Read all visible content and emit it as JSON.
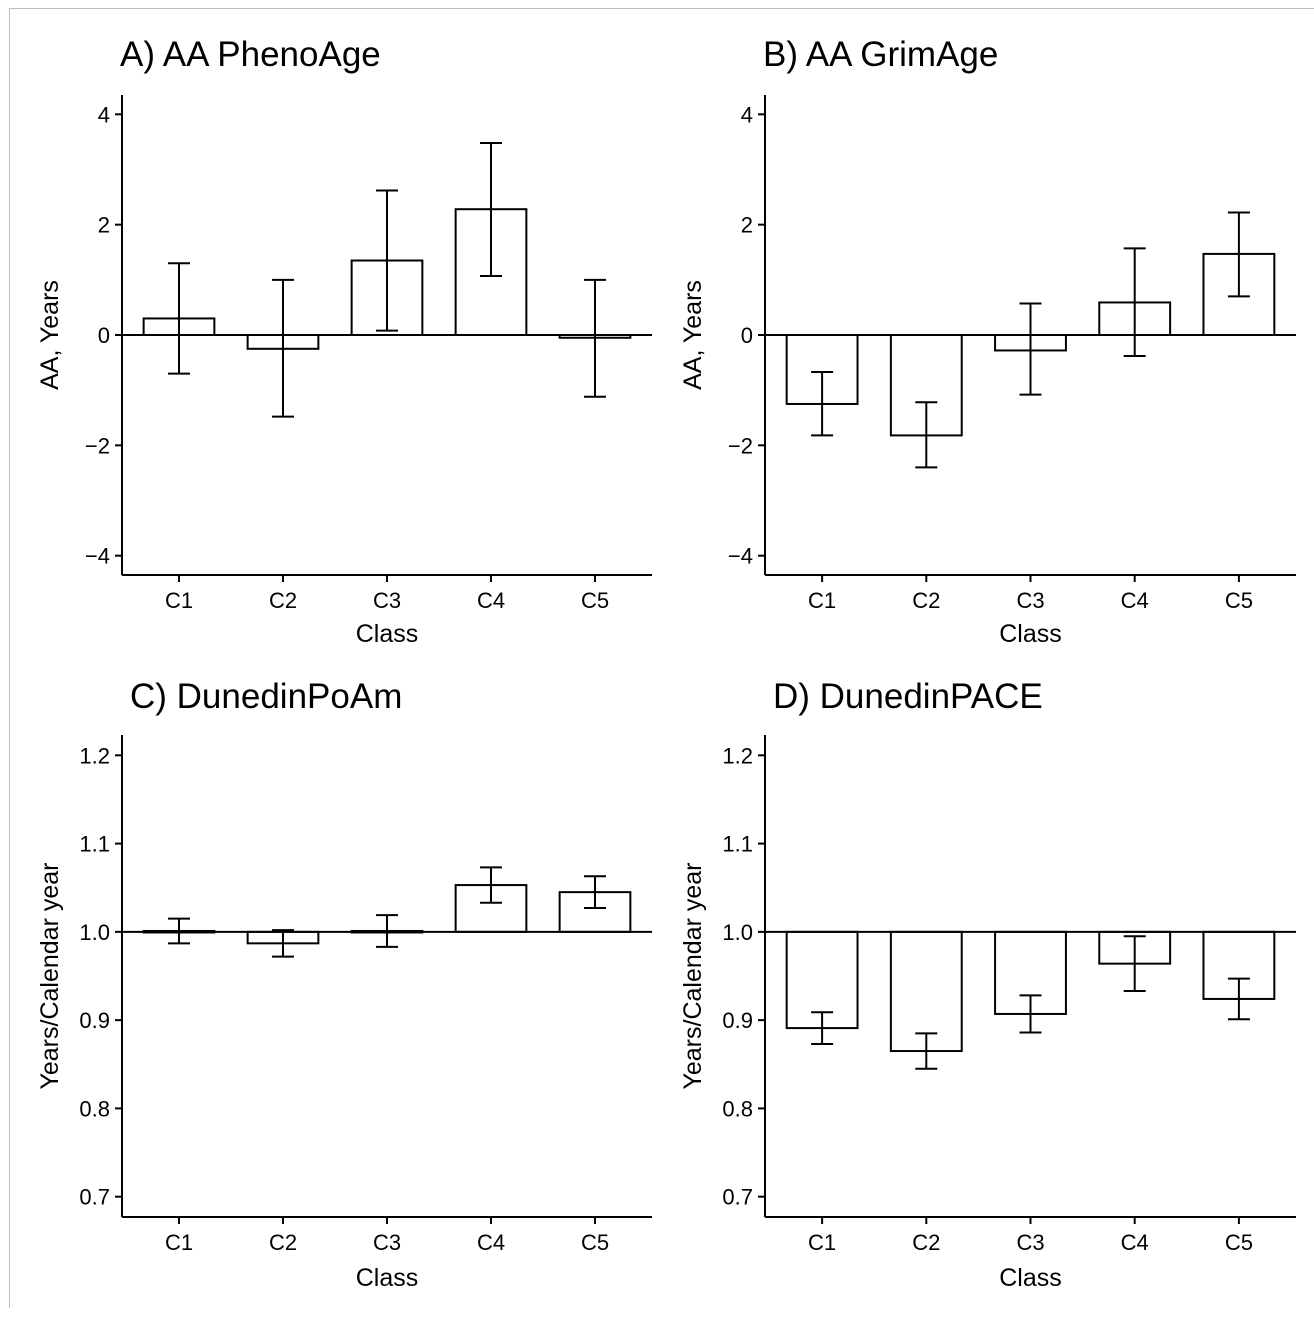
{
  "chart_data": [
    {
      "type": "bar",
      "title": "A) AA PhenoAge",
      "xlabel": "Class",
      "ylabel": "AA, Years",
      "categories": [
        "C1",
        "C2",
        "C3",
        "C4",
        "C5"
      ],
      "values": [
        0.3,
        -0.25,
        1.35,
        2.28,
        -0.05
      ],
      "error_low": [
        -0.7,
        -1.48,
        0.08,
        1.07,
        -1.12
      ],
      "error_high": [
        1.3,
        1.0,
        2.62,
        3.48,
        1.0
      ],
      "ylim": [
        -4.35,
        4.35
      ],
      "yticks": [
        -4,
        -2,
        0,
        2,
        4
      ],
      "ytick_labels": [
        "−4",
        "−2",
        "0",
        "2",
        "4"
      ],
      "reference_line": 0,
      "grid": false
    },
    {
      "type": "bar",
      "title": "B) AA GrimAge",
      "xlabel": "Class",
      "ylabel": "AA, Years",
      "categories": [
        "C1",
        "C2",
        "C3",
        "C4",
        "C5"
      ],
      "values": [
        -1.25,
        -1.82,
        -0.28,
        0.59,
        1.47
      ],
      "error_low": [
        -1.82,
        -2.4,
        -1.08,
        -0.38,
        0.7
      ],
      "error_high": [
        -0.67,
        -1.22,
        0.57,
        1.57,
        2.22
      ],
      "ylim": [
        -4.35,
        4.35
      ],
      "yticks": [
        -4,
        -2,
        0,
        2,
        4
      ],
      "ytick_labels": [
        "−4",
        "−2",
        "0",
        "2",
        "4"
      ],
      "reference_line": 0,
      "grid": false
    },
    {
      "type": "bar",
      "title": "C) DunedinPoAm",
      "xlabel": "Class",
      "ylabel": "Years/Calendar year",
      "categories": [
        "C1",
        "C2",
        "C3",
        "C4",
        "C5"
      ],
      "values": [
        1.001,
        0.987,
        1.001,
        1.053,
        1.045
      ],
      "error_low": [
        0.987,
        0.972,
        0.983,
        1.033,
        1.027
      ],
      "error_high": [
        1.015,
        1.002,
        1.019,
        1.073,
        1.063
      ],
      "ylim": [
        0.677,
        1.223
      ],
      "yticks": [
        0.7,
        0.8,
        0.9,
        1.0,
        1.1,
        1.2
      ],
      "ytick_labels": [
        "0.7",
        "0.8",
        "0.9",
        "1.0",
        "1.1",
        "1.2"
      ],
      "reference_line": 1.0,
      "grid": false
    },
    {
      "type": "bar",
      "title": "D) DunedinPACE",
      "xlabel": "Class",
      "ylabel": "Years/Calendar year",
      "categories": [
        "C1",
        "C2",
        "C3",
        "C4",
        "C5"
      ],
      "values": [
        0.891,
        0.865,
        0.907,
        0.964,
        0.924
      ],
      "error_low": [
        0.873,
        0.845,
        0.886,
        0.933,
        0.901
      ],
      "error_high": [
        0.909,
        0.885,
        0.928,
        0.995,
        0.947
      ],
      "ylim": [
        0.677,
        1.223
      ],
      "yticks": [
        0.7,
        0.8,
        0.9,
        1.0,
        1.1,
        1.2
      ],
      "ytick_labels": [
        "0.7",
        "0.8",
        "0.9",
        "1.0",
        "1.1",
        "1.2"
      ],
      "reference_line": 1.0,
      "grid": false
    }
  ]
}
